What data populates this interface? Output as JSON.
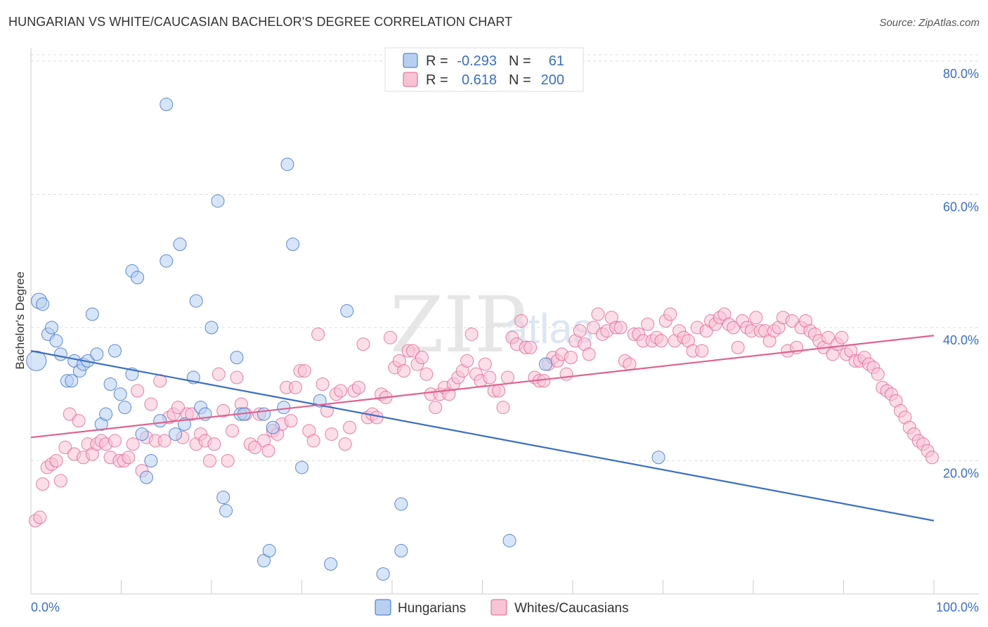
{
  "title": "HUNGARIAN VS WHITE/CAUCASIAN BACHELOR'S DEGREE CORRELATION CHART",
  "source": "Source: ZipAtlas.com",
  "watermark": {
    "zip": "ZIP",
    "atlas": "atlas"
  },
  "colors": {
    "blue": "#3a6fc4",
    "blue_fill": "#b7d0f2",
    "pink": "#e0628f",
    "pink_fill": "#f7c3d5",
    "grid": "#dddddd"
  },
  "legend": {
    "rows": [
      {
        "r_label": "R =",
        "r_value": "-0.293",
        "n_label": "N =",
        "n_value": "61"
      },
      {
        "r_label": "R =",
        "r_value": "0.618",
        "n_label": "N =",
        "n_value": "200"
      }
    ]
  },
  "chart_data": {
    "type": "scatter",
    "title": "HUNGARIAN VS WHITE/CAUCASIAN BACHELOR'S DEGREE CORRELATION CHART",
    "xlabel": "",
    "ylabel": "Bachelor's Degree",
    "xlim": [
      0,
      100
    ],
    "ylim": [
      0,
      82
    ],
    "x_tick_labels": [
      "0.0%",
      "100.0%"
    ],
    "y_ticks": [
      20,
      40,
      60,
      80
    ],
    "y_tick_labels": [
      "20.0%",
      "40.0%",
      "60.0%",
      "80.0%"
    ],
    "legend_position": "bottom-center",
    "series": [
      {
        "name": "Hungarians",
        "color": "#3a6fc4",
        "trend": {
          "x": [
            0,
            100
          ],
          "y": [
            36.5,
            11.0
          ]
        },
        "points": [
          [
            0.6,
            35
          ],
          [
            0.9,
            44
          ],
          [
            1.3,
            43.5
          ],
          [
            1.9,
            39
          ],
          [
            2.3,
            40
          ],
          [
            2.8,
            38
          ],
          [
            3.3,
            36
          ],
          [
            4,
            32
          ],
          [
            4.5,
            32
          ],
          [
            4.8,
            35
          ],
          [
            5.4,
            33.5
          ],
          [
            5.8,
            34.5
          ],
          [
            6.3,
            35
          ],
          [
            6.8,
            42
          ],
          [
            7.3,
            36
          ],
          [
            7.8,
            25.5
          ],
          [
            8.3,
            27
          ],
          [
            8.8,
            31.5
          ],
          [
            9.3,
            36.5
          ],
          [
            9.9,
            30
          ],
          [
            10.4,
            28
          ],
          [
            11.2,
            33
          ],
          [
            11.2,
            48.5
          ],
          [
            11.8,
            47.5
          ],
          [
            12.3,
            24
          ],
          [
            12.8,
            17.5
          ],
          [
            13.3,
            20
          ],
          [
            14.3,
            26
          ],
          [
            15,
            50
          ],
          [
            15,
            73.5
          ],
          [
            16,
            24
          ],
          [
            16.5,
            52.5
          ],
          [
            17,
            25.5
          ],
          [
            18,
            32.5
          ],
          [
            18.3,
            44
          ],
          [
            18.8,
            28
          ],
          [
            19.3,
            27
          ],
          [
            20,
            40
          ],
          [
            20.7,
            59
          ],
          [
            21.3,
            14.5
          ],
          [
            21.6,
            12.5
          ],
          [
            22.8,
            35.5
          ],
          [
            23.2,
            27
          ],
          [
            23.6,
            27
          ],
          [
            25.8,
            5
          ],
          [
            25.8,
            27
          ],
          [
            26.4,
            6.5
          ],
          [
            26.8,
            25
          ],
          [
            28,
            28
          ],
          [
            28.4,
            64.5
          ],
          [
            29,
            52.5
          ],
          [
            30,
            19
          ],
          [
            32,
            29
          ],
          [
            33.2,
            4.5
          ],
          [
            35,
            42.5
          ],
          [
            39,
            3
          ],
          [
            41,
            13.5
          ],
          [
            41,
            6.5
          ],
          [
            53,
            8
          ],
          [
            57,
            34.5
          ],
          [
            69.5,
            20.5
          ]
        ]
      },
      {
        "name": "Whites/Caucasians",
        "color": "#e0628f",
        "trend": {
          "x": [
            0,
            100
          ],
          "y": [
            23.5,
            38.8
          ]
        },
        "points": [
          [
            0.5,
            11
          ],
          [
            1,
            11.5
          ],
          [
            1.3,
            16.5
          ],
          [
            1.8,
            19
          ],
          [
            2.3,
            19.5
          ],
          [
            2.8,
            20
          ],
          [
            3.3,
            17
          ],
          [
            3.8,
            22
          ],
          [
            4.3,
            27
          ],
          [
            4.8,
            21
          ],
          [
            5.3,
            26
          ],
          [
            5.8,
            20.5
          ],
          [
            6.3,
            22.5
          ],
          [
            6.8,
            21
          ],
          [
            7.3,
            22.5
          ],
          [
            7.8,
            23
          ],
          [
            8.3,
            22.5
          ],
          [
            8.8,
            20.5
          ],
          [
            9.3,
            23
          ],
          [
            9.8,
            20
          ],
          [
            10.3,
            20
          ],
          [
            10.8,
            20.5
          ],
          [
            11.3,
            22.5
          ],
          [
            11.8,
            30.5
          ],
          [
            12.3,
            18.5
          ],
          [
            12.8,
            23.5
          ],
          [
            13.3,
            28.5
          ],
          [
            13.8,
            23
          ],
          [
            14.3,
            32
          ],
          [
            14.8,
            23
          ],
          [
            15.3,
            26.5
          ],
          [
            15.8,
            27
          ],
          [
            16.3,
            28
          ],
          [
            16.8,
            23.5
          ],
          [
            17.3,
            27
          ],
          [
            17.8,
            27
          ],
          [
            18.3,
            22.5
          ],
          [
            18.8,
            24
          ],
          [
            19.3,
            23
          ],
          [
            19.8,
            20
          ],
          [
            20.3,
            22.5
          ],
          [
            20.8,
            33
          ],
          [
            21.3,
            27.5
          ],
          [
            21.8,
            20
          ],
          [
            22.3,
            24.5
          ],
          [
            22.8,
            32.5
          ],
          [
            23.3,
            28.5
          ],
          [
            23.8,
            27
          ],
          [
            24.3,
            22.5
          ],
          [
            24.8,
            22
          ],
          [
            25.3,
            27
          ],
          [
            25.8,
            23
          ],
          [
            26.3,
            21.5
          ],
          [
            26.8,
            24.5
          ],
          [
            27.3,
            24
          ],
          [
            27.8,
            25.5
          ],
          [
            28.3,
            31
          ],
          [
            28.8,
            26
          ],
          [
            29.3,
            31
          ],
          [
            29.8,
            33.5
          ],
          [
            30.3,
            33.5
          ],
          [
            30.8,
            24.5
          ],
          [
            31.3,
            23
          ],
          [
            31.8,
            39
          ],
          [
            32.3,
            31.5
          ],
          [
            32.8,
            27.5
          ],
          [
            33.3,
            24
          ],
          [
            33.8,
            30
          ],
          [
            34.3,
            30.5
          ],
          [
            34.8,
            22.5
          ],
          [
            35.3,
            25
          ],
          [
            35.8,
            30.5
          ],
          [
            36.3,
            31
          ],
          [
            36.8,
            37.5
          ],
          [
            37.3,
            26.5
          ],
          [
            37.8,
            27
          ],
          [
            38.3,
            26.5
          ],
          [
            38.8,
            30
          ],
          [
            39.3,
            29.5
          ],
          [
            39.8,
            38.5
          ],
          [
            40.3,
            34
          ],
          [
            40.8,
            35
          ],
          [
            41.3,
            33.5
          ],
          [
            41.8,
            36.5
          ],
          [
            42.3,
            36.5
          ],
          [
            42.8,
            34.5
          ],
          [
            43.3,
            35.5
          ],
          [
            43.8,
            33
          ],
          [
            44.3,
            30
          ],
          [
            44.8,
            28
          ],
          [
            45.3,
            30
          ],
          [
            45.8,
            31
          ],
          [
            46.3,
            30
          ],
          [
            46.8,
            31.5
          ],
          [
            47.3,
            32.5
          ],
          [
            47.8,
            33.5
          ],
          [
            48.3,
            35
          ],
          [
            48.8,
            39
          ],
          [
            49.3,
            33
          ],
          [
            49.8,
            32
          ],
          [
            50.3,
            34.5
          ],
          [
            50.8,
            32.5
          ],
          [
            51.3,
            30.5
          ],
          [
            51.8,
            30.5
          ],
          [
            52.3,
            28
          ],
          [
            52.8,
            32.5
          ],
          [
            53.3,
            38.5
          ],
          [
            53.8,
            37.5
          ],
          [
            54.3,
            41
          ],
          [
            54.8,
            37
          ],
          [
            55.3,
            37
          ],
          [
            55.8,
            32.5
          ],
          [
            56.3,
            32
          ],
          [
            56.8,
            32
          ],
          [
            57.3,
            34.5
          ],
          [
            57.8,
            35.5
          ],
          [
            58.3,
            35
          ],
          [
            58.8,
            36
          ],
          [
            59.3,
            33
          ],
          [
            59.8,
            35.5
          ],
          [
            60.3,
            38
          ],
          [
            60.8,
            39.5
          ],
          [
            61.3,
            37.5
          ],
          [
            61.8,
            36
          ],
          [
            62.3,
            40
          ],
          [
            62.8,
            42
          ],
          [
            63.3,
            39
          ],
          [
            63.8,
            39.5
          ],
          [
            64.3,
            41.5
          ],
          [
            64.8,
            40
          ],
          [
            65.3,
            40
          ],
          [
            65.8,
            35
          ],
          [
            66.3,
            34.5
          ],
          [
            66.8,
            39
          ],
          [
            67.3,
            39
          ],
          [
            67.8,
            38
          ],
          [
            68.3,
            40.5
          ],
          [
            68.8,
            38
          ],
          [
            69.3,
            38.5
          ],
          [
            69.8,
            38
          ],
          [
            70.3,
            41
          ],
          [
            70.8,
            42
          ],
          [
            71.3,
            38
          ],
          [
            71.8,
            39.5
          ],
          [
            72.3,
            38.5
          ],
          [
            72.8,
            38
          ],
          [
            73.3,
            36.5
          ],
          [
            73.8,
            40
          ],
          [
            74.3,
            36.5
          ],
          [
            74.8,
            39.5
          ],
          [
            75.3,
            41
          ],
          [
            75.8,
            40.5
          ],
          [
            76.3,
            41.5
          ],
          [
            76.8,
            42
          ],
          [
            77.3,
            40.5
          ],
          [
            77.8,
            40
          ],
          [
            78.3,
            37
          ],
          [
            78.8,
            41
          ],
          [
            79.3,
            40
          ],
          [
            79.8,
            39.5
          ],
          [
            80.3,
            41.5
          ],
          [
            80.8,
            39.5
          ],
          [
            81.3,
            39.5
          ],
          [
            81.8,
            38
          ],
          [
            82.3,
            39.5
          ],
          [
            82.8,
            40
          ],
          [
            83.3,
            41.5
          ],
          [
            83.8,
            36.5
          ],
          [
            84.3,
            41
          ],
          [
            84.8,
            37
          ],
          [
            85.3,
            40
          ],
          [
            85.8,
            41
          ],
          [
            86.3,
            39.5
          ],
          [
            86.8,
            39
          ],
          [
            87.3,
            38
          ],
          [
            87.8,
            37
          ],
          [
            88.3,
            38.5
          ],
          [
            88.8,
            36
          ],
          [
            89.3,
            37.5
          ],
          [
            89.8,
            38.5
          ],
          [
            90.3,
            36
          ],
          [
            90.8,
            36.5
          ],
          [
            91.3,
            35
          ],
          [
            91.8,
            35
          ],
          [
            92.3,
            35.5
          ],
          [
            92.8,
            34.5
          ],
          [
            93.3,
            34
          ],
          [
            93.8,
            33
          ],
          [
            94.3,
            31
          ],
          [
            94.8,
            30.5
          ],
          [
            95.3,
            30
          ],
          [
            95.8,
            29
          ],
          [
            96.3,
            27.5
          ],
          [
            96.8,
            26.5
          ],
          [
            97.3,
            25
          ],
          [
            97.8,
            24
          ],
          [
            98.3,
            23
          ],
          [
            98.8,
            22.5
          ],
          [
            99.3,
            21.5
          ],
          [
            99.8,
            20.5
          ]
        ]
      }
    ]
  }
}
